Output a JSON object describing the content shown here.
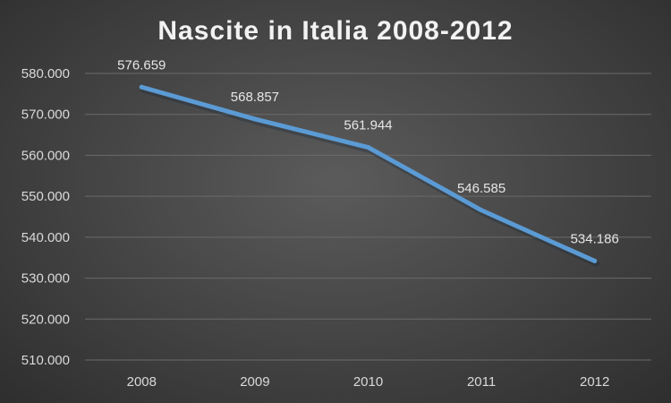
{
  "chart_data": {
    "type": "line",
    "title": "Nascite in Italia 2008-2012",
    "categories": [
      "2008",
      "2009",
      "2010",
      "2011",
      "2012"
    ],
    "values": [
      576659,
      568857,
      561944,
      546585,
      534186
    ],
    "data_labels": [
      "576.659",
      "568.857",
      "561.944",
      "546.585",
      "534.186"
    ],
    "ylim": [
      510000,
      580000
    ],
    "y_ticks": [
      510000,
      520000,
      530000,
      540000,
      550000,
      560000,
      570000,
      580000
    ],
    "y_tick_labels": [
      "510.000",
      "520.000",
      "530.000",
      "540.000",
      "550.000",
      "560.000",
      "570.000",
      "580.000"
    ],
    "grid": true,
    "legend": "none",
    "colors": {
      "line": "#5b9bd5",
      "grid": "#6a6a6a",
      "text": "#d9d9d9"
    }
  }
}
